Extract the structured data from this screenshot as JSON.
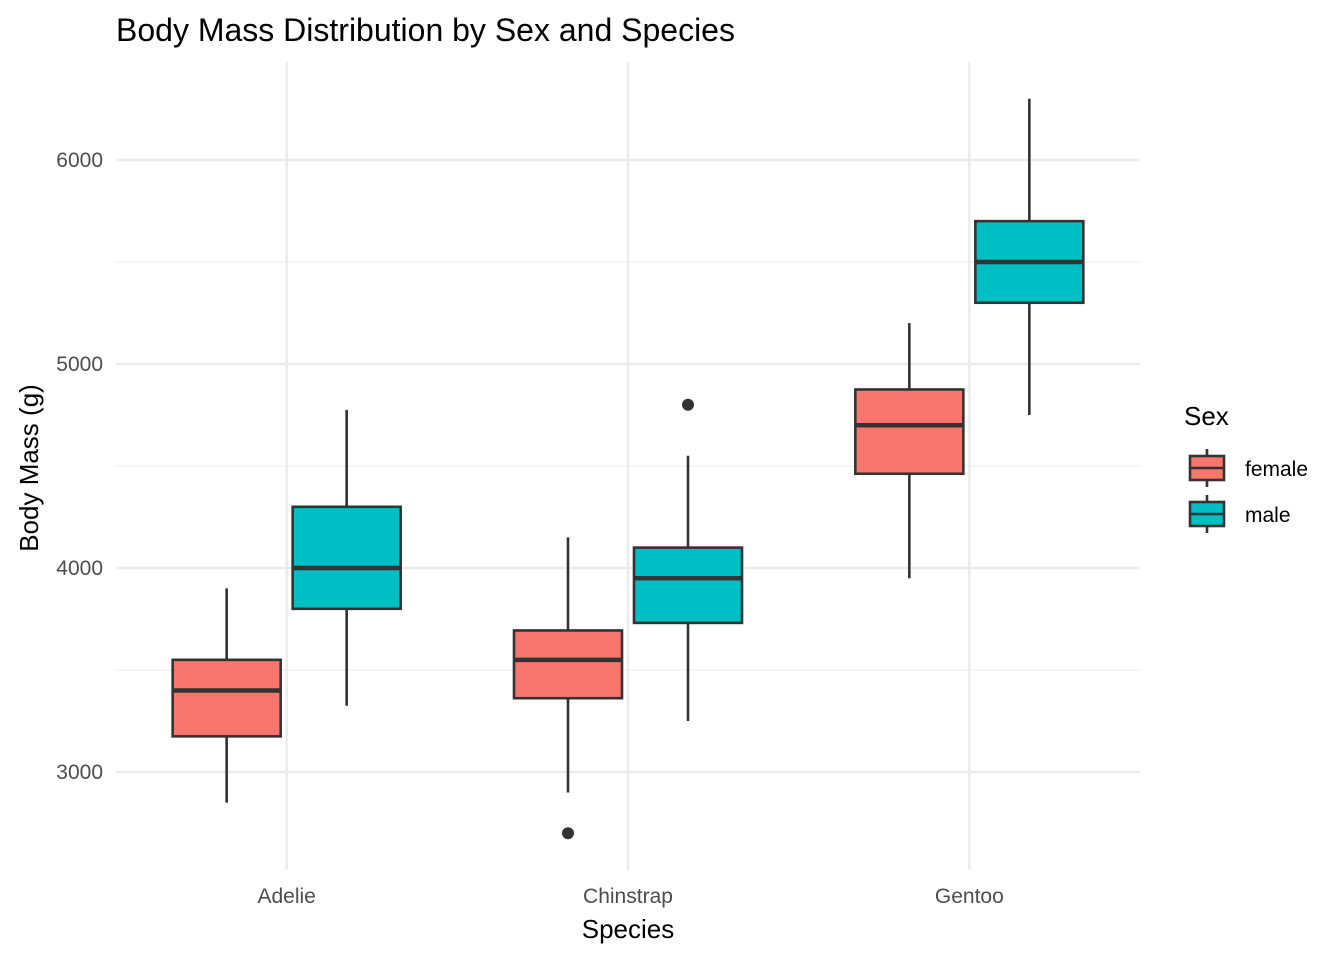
{
  "chart_data": {
    "type": "boxplot",
    "title": "Body Mass Distribution by Sex and Species",
    "xlabel": "Species",
    "ylabel": "Body Mass (g)",
    "categories": [
      "Adelie",
      "Chinstrap",
      "Gentoo"
    ],
    "ylim": [
      2520,
      6480
    ],
    "yticks": [
      3000,
      4000,
      5000,
      6000
    ],
    "y_minor_ticks": [
      3500,
      4500,
      5500
    ],
    "ytick_labels": [
      "3000",
      "4000",
      "5000",
      "6000"
    ],
    "grid": true,
    "legend": {
      "title": "Sex",
      "position": "right"
    },
    "series": [
      {
        "name": "female",
        "color": "#F8766D",
        "boxes": [
          {
            "category": "Adelie",
            "whisker_low": 2850,
            "q1": 3175,
            "median": 3400,
            "q3": 3550,
            "whisker_high": 3900,
            "outliers": []
          },
          {
            "category": "Chinstrap",
            "whisker_low": 2900,
            "q1": 3362,
            "median": 3550,
            "q3": 3694,
            "whisker_high": 4150,
            "outliers": [
              2700
            ]
          },
          {
            "category": "Gentoo",
            "whisker_low": 3950,
            "q1": 4462,
            "median": 4700,
            "q3": 4875,
            "whisker_high": 5200,
            "outliers": []
          }
        ]
      },
      {
        "name": "male",
        "color": "#00BFC4",
        "boxes": [
          {
            "category": "Adelie",
            "whisker_low": 3325,
            "q1": 3800,
            "median": 4000,
            "q3": 4300,
            "whisker_high": 4775,
            "outliers": []
          },
          {
            "category": "Chinstrap",
            "whisker_low": 3250,
            "q1": 3731,
            "median": 3950,
            "q3": 4100,
            "whisker_high": 4550,
            "outliers": [
              4800
            ]
          },
          {
            "category": "Gentoo",
            "whisker_low": 4750,
            "q1": 5300,
            "median": 5500,
            "q3": 5700,
            "whisker_high": 6300,
            "outliers": []
          }
        ]
      }
    ]
  }
}
